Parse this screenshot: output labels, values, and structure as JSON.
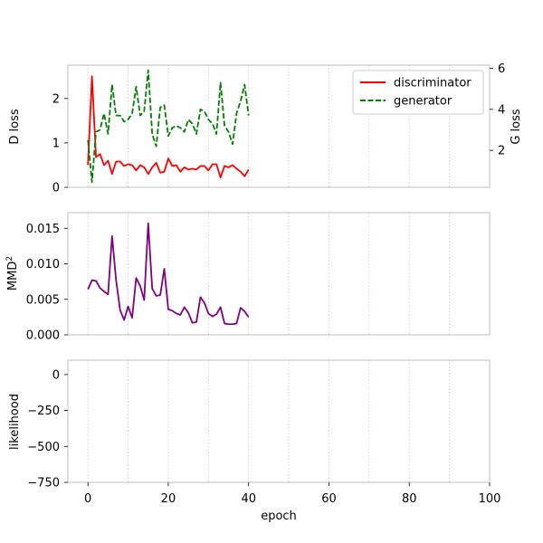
{
  "chart_data": [
    {
      "type": "line",
      "panel": "losses",
      "x_ticks_shown": false,
      "ylabel": "D loss",
      "ylabel_right": "G loss",
      "xlim": [
        -5,
        100
      ],
      "ylim": [
        0,
        2.75
      ],
      "ylim_right": [
        0.2,
        6.15
      ],
      "yticks": [
        "0",
        "1",
        "2"
      ],
      "yticks_right": [
        "2",
        "4",
        "6"
      ],
      "grid": "vertical dotted at x = 0, 10, 20 ... 90",
      "legend": {
        "placement": "top-right",
        "entries": [
          "discriminator",
          "generator"
        ]
      },
      "colors": {
        "discriminator": "#ff0000",
        "generator": "#008000"
      },
      "series": [
        {
          "name": "discriminator",
          "axis": "left",
          "style": "solid",
          "x": [
            0,
            1,
            2,
            3,
            4,
            5,
            6,
            7,
            8,
            9,
            10,
            11,
            12,
            13,
            14,
            15,
            16,
            17,
            18,
            19,
            20,
            21,
            22,
            23,
            24,
            25,
            26,
            27,
            28,
            29,
            30,
            31,
            32,
            33,
            34,
            35,
            36,
            37,
            38,
            39,
            40
          ],
          "values": [
            0.5,
            2.5,
            0.68,
            0.75,
            0.5,
            0.6,
            0.3,
            0.58,
            0.58,
            0.48,
            0.52,
            0.5,
            0.38,
            0.5,
            0.45,
            0.3,
            0.45,
            0.55,
            0.33,
            0.35,
            0.65,
            0.48,
            0.5,
            0.35,
            0.45,
            0.4,
            0.42,
            0.4,
            0.48,
            0.48,
            0.38,
            0.52,
            0.52,
            0.22,
            0.48,
            0.45,
            0.5,
            0.42,
            0.35,
            0.25,
            0.4
          ]
        },
        {
          "name": "generator",
          "axis": "right",
          "style": "dashed",
          "x": [
            0,
            1,
            2,
            3,
            4,
            5,
            6,
            7,
            8,
            9,
            10,
            11,
            12,
            13,
            14,
            15,
            16,
            17,
            18,
            19,
            20,
            21,
            22,
            23,
            24,
            25,
            26,
            27,
            28,
            29,
            30,
            31,
            32,
            33,
            34,
            35,
            36,
            37,
            38,
            39,
            40
          ],
          "values": [
            2.5,
            0.45,
            2.9,
            3.0,
            3.8,
            2.8,
            5.2,
            3.7,
            3.7,
            3.4,
            3.5,
            3.8,
            5.1,
            3.7,
            3.9,
            5.9,
            2.8,
            2.2,
            4.1,
            4.2,
            2.7,
            3.1,
            3.2,
            3.1,
            2.9,
            3.5,
            3.3,
            2.8,
            4.0,
            3.9,
            3.5,
            3.3,
            2.8,
            5.3,
            3.2,
            2.9,
            2.3,
            3.8,
            4.4,
            5.2,
            3.7
          ]
        }
      ]
    },
    {
      "type": "line",
      "panel": "mmd",
      "x_ticks_shown": false,
      "ylabel": "MMD",
      "ylabel_superscript": "2",
      "xlim": [
        -5,
        100
      ],
      "ylim": [
        0,
        0.0172
      ],
      "yticks": [
        "0.000",
        "0.005",
        "0.010",
        "0.015"
      ],
      "grid": "vertical dotted at x = 0, 10, 20 ... 90",
      "colors": {
        "line": "#800080"
      },
      "series": [
        {
          "x": [
            0,
            1,
            2,
            3,
            4,
            5,
            6,
            7,
            8,
            9,
            10,
            11,
            12,
            13,
            14,
            15,
            16,
            17,
            18,
            19,
            20,
            21,
            22,
            23,
            24,
            25,
            26,
            27,
            28,
            29,
            30,
            31,
            32,
            33,
            34,
            35,
            36,
            37,
            38,
            39,
            40
          ],
          "values": [
            0.0064,
            0.0077,
            0.0076,
            0.0066,
            0.0061,
            0.0057,
            0.0139,
            0.0077,
            0.0035,
            0.0021,
            0.004,
            0.0024,
            0.008,
            0.0069,
            0.0049,
            0.0157,
            0.0065,
            0.0055,
            0.0056,
            0.0093,
            0.0036,
            0.0034,
            0.003,
            0.0028,
            0.0039,
            0.0031,
            0.0017,
            0.0018,
            0.0053,
            0.0045,
            0.003,
            0.0026,
            0.0029,
            0.0039,
            0.0016,
            0.0015,
            0.0015,
            0.0016,
            0.0038,
            0.0033,
            0.0025
          ]
        }
      ]
    },
    {
      "type": "line",
      "panel": "likelihood",
      "xlabel": "epoch",
      "ylabel": "likelihood",
      "xlim": [
        -5,
        100
      ],
      "xticks": [
        "0",
        "20",
        "40",
        "60",
        "80",
        "100"
      ],
      "ylim": [
        -750,
        100
      ],
      "yticks": [
        "0",
        "−250",
        "−500",
        "−750"
      ],
      "grid": "vertical dotted at x = 0, 10, 20 ... 90",
      "series": []
    }
  ]
}
